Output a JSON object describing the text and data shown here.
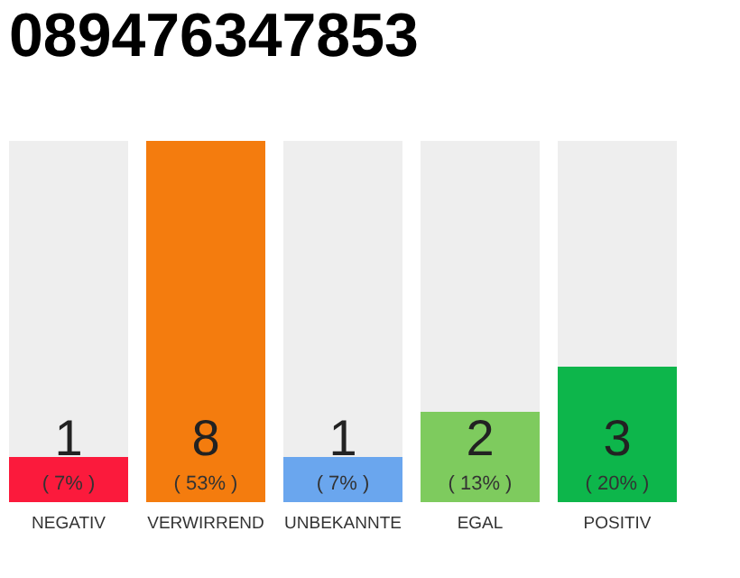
{
  "chart_data": {
    "type": "bar",
    "title": "089476347853",
    "categories": [
      "NEGATIV",
      "VERWIRREND",
      "UNBEKANNTE",
      "EGAL",
      "POSITIV"
    ],
    "values": [
      1,
      8,
      1,
      2,
      3
    ],
    "colors": [
      "#fb1a3c",
      "#f47c0e",
      "#6aa6ee",
      "#7ecb5e",
      "#0db64b"
    ],
    "data_labels": true,
    "annotations": [
      "( 7% )",
      "( 53% )",
      "( 7% )",
      "( 13% )",
      "( 20% )"
    ]
  }
}
